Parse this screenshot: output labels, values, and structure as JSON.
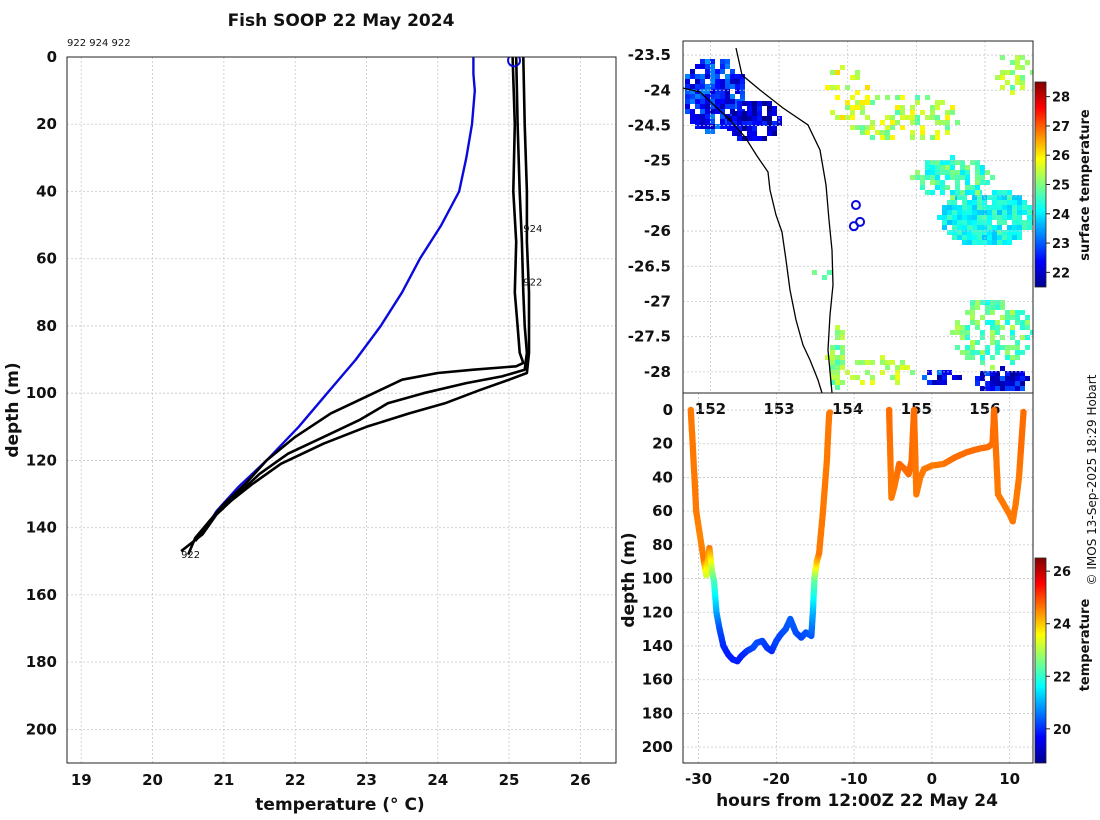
{
  "page": {
    "title": "Fish SOOP 22 May 2024",
    "ids_label": "922 924 922",
    "credit": "© IMOS 13-Sep-2025 18:29 Hobart"
  },
  "chart_data": [
    {
      "name": "profile",
      "type": "line",
      "xlabel": "temperature (° C)",
      "ylabel": "depth (m)",
      "xlim": [
        18.8,
        26.5
      ],
      "ylim": [
        210,
        0
      ],
      "xticks": [
        19,
        20,
        21,
        22,
        23,
        24,
        25,
        26
      ],
      "yticks": [
        0,
        20,
        40,
        60,
        80,
        100,
        120,
        140,
        160,
        180,
        200
      ],
      "grid": true,
      "annotations": [
        {
          "text": "924",
          "x": 25.2,
          "y": 52
        },
        {
          "text": "922",
          "x": 25.2,
          "y": 68
        },
        {
          "text": "922",
          "x": 20.4,
          "y": 149
        }
      ],
      "surface_marker": {
        "x": 25.07,
        "y": 1
      },
      "series": [
        {
          "name": "climatology",
          "color": "#0a0adc",
          "x": [
            24.5,
            24.5,
            24.52,
            24.48,
            24.4,
            24.3,
            24.05,
            23.75,
            23.5,
            23.2,
            22.85,
            22.45,
            22.05,
            21.6,
            21.2,
            20.9,
            20.75
          ],
          "y": [
            0,
            5,
            10,
            20,
            30,
            40,
            50,
            60,
            70,
            80,
            90,
            100,
            110,
            120,
            128,
            135,
            140
          ]
        },
        {
          "name": "profile-1",
          "color": "#000000",
          "x": [
            25.05,
            25.08,
            25.06,
            25.1,
            25.08,
            25.12,
            25.15,
            25.2,
            25.1,
            24.5,
            24.0,
            23.5,
            23.0,
            22.5,
            22.0,
            21.6,
            21.3,
            21.0,
            20.8,
            20.6,
            20.5
          ],
          "y": [
            0,
            20,
            40,
            55,
            70,
            80,
            88,
            91,
            92,
            93,
            94,
            96,
            101,
            106,
            113,
            120,
            127,
            133,
            138,
            143,
            148
          ]
        },
        {
          "name": "profile-2",
          "color": "#000000",
          "x": [
            25.1,
            25.12,
            25.15,
            25.18,
            25.2,
            25.22,
            25.25,
            25.22,
            24.9,
            24.4,
            23.8,
            23.3,
            22.9,
            22.4,
            21.9,
            21.5,
            21.2,
            20.9,
            20.7,
            20.4
          ],
          "y": [
            0,
            20,
            40,
            55,
            70,
            80,
            88,
            93,
            95,
            97,
            100,
            103,
            108,
            113,
            118,
            124,
            130,
            136,
            142,
            147
          ]
        },
        {
          "name": "profile-3",
          "color": "#000000",
          "x": [
            25.2,
            25.22,
            25.25,
            25.25,
            25.28,
            25.28,
            25.28,
            25.25,
            25.0,
            24.6,
            24.1,
            23.6,
            23.0,
            22.4,
            21.8,
            21.4,
            21.1,
            20.8,
            20.6
          ],
          "y": [
            0,
            20,
            40,
            55,
            70,
            80,
            88,
            94,
            96,
            99,
            103,
            106,
            110,
            115,
            121,
            127,
            132,
            138,
            144
          ]
        }
      ]
    },
    {
      "name": "sst-map",
      "type": "heatmap",
      "ylim": [
        -28.3,
        -23.3
      ],
      "xlim": [
        151.6,
        156.7
      ],
      "yticks": [
        -23.5,
        -24,
        -24.5,
        -25,
        -25.5,
        -26,
        -26.5,
        -27,
        -27.5,
        -28
      ],
      "xticks": [
        152,
        153,
        154,
        155,
        156
      ],
      "colorbar": {
        "label": "surface temperature",
        "range": [
          21.5,
          28.5
        ],
        "ticks": [
          22,
          23,
          24,
          25,
          26,
          27,
          28
        ]
      },
      "stations": [
        {
          "lon": 154.12,
          "lat": -25.63
        },
        {
          "lon": 154.18,
          "lat": -25.87
        },
        {
          "lon": 154.09,
          "lat": -25.93
        }
      ]
    },
    {
      "name": "depth-time",
      "type": "scatter",
      "xlabel": "hours from 12:00Z 22 May 24",
      "ylabel": "depth (m)",
      "xlim": [
        -32,
        13
      ],
      "ylim": [
        210,
        0
      ],
      "xticks": [
        -30,
        -20,
        -10,
        0,
        10
      ],
      "yticks": [
        0,
        20,
        40,
        60,
        80,
        100,
        120,
        140,
        160,
        180,
        200
      ],
      "colorbar": {
        "label": "temperature",
        "range": [
          18.7,
          26.5
        ],
        "ticks": [
          20,
          22,
          24,
          26
        ]
      },
      "segments": [
        {
          "name": "track-1",
          "x": [
            -31,
            -30.7,
            -30.3,
            -29.8,
            -29.3,
            -29.0,
            -28.6,
            -28.3,
            -28.0,
            -27.7,
            -27.3,
            -26.8,
            -26.2,
            -25.6,
            -25.0,
            -24.5,
            -23.8,
            -23.0,
            -22.5,
            -21.8,
            -21.2,
            -20.6,
            -20.0,
            -19.4,
            -18.8,
            -18.2,
            -17.5,
            -16.8,
            -16.2,
            -15.5,
            -15.3,
            -15.1,
            -14.8,
            -14.5,
            -14.0,
            -13.5,
            -13.3,
            -13.2,
            -13.0
          ],
          "y": [
            0,
            25,
            60,
            75,
            90,
            98,
            82,
            95,
            102,
            120,
            130,
            140,
            145,
            148,
            149,
            146,
            143,
            141,
            138,
            137,
            141,
            143,
            137,
            133,
            130,
            124,
            132,
            135,
            132,
            134,
            120,
            100,
            90,
            85,
            60,
            30,
            10,
            2,
            1
          ],
          "t": [
            24.6,
            24.6,
            24.6,
            24.5,
            24.6,
            23.2,
            24.6,
            23.0,
            22.2,
            21.0,
            20.3,
            20.0,
            19.9,
            19.9,
            19.9,
            19.9,
            20.0,
            20.2,
            20.3,
            20.2,
            20.1,
            20.0,
            20.2,
            20.2,
            20.3,
            20.4,
            20.3,
            20.2,
            20.3,
            20.3,
            21.0,
            22.4,
            24.0,
            24.6,
            24.6,
            24.6,
            24.6,
            24.6,
            24.6
          ]
        },
        {
          "name": "track-2",
          "x": [
            -5.5,
            -5.2,
            -4.8,
            -4.2,
            -3.5,
            -3.0,
            -2.6,
            -2.3,
            -2.0,
            -1.5,
            -1.0,
            0,
            1.5,
            3,
            4.5,
            6,
            7.2,
            7.8,
            8.0,
            8.5,
            9.5,
            10.0,
            10.4,
            10.8,
            11.2,
            11.5,
            11.8
          ],
          "y": [
            0,
            52,
            45,
            32,
            35,
            38,
            30,
            0,
            50,
            40,
            35,
            33,
            32,
            28,
            25,
            23,
            22,
            20,
            0,
            50,
            58,
            62,
            66,
            55,
            40,
            20,
            0
          ],
          "t": [
            24.7,
            24.6,
            24.6,
            24.7,
            24.7,
            24.7,
            24.7,
            24.7,
            24.6,
            24.6,
            24.6,
            24.6,
            24.6,
            24.7,
            24.7,
            24.7,
            24.7,
            24.7,
            24.7,
            24.6,
            24.6,
            24.6,
            24.6,
            24.6,
            24.6,
            24.7,
            24.7
          ]
        }
      ]
    }
  ]
}
